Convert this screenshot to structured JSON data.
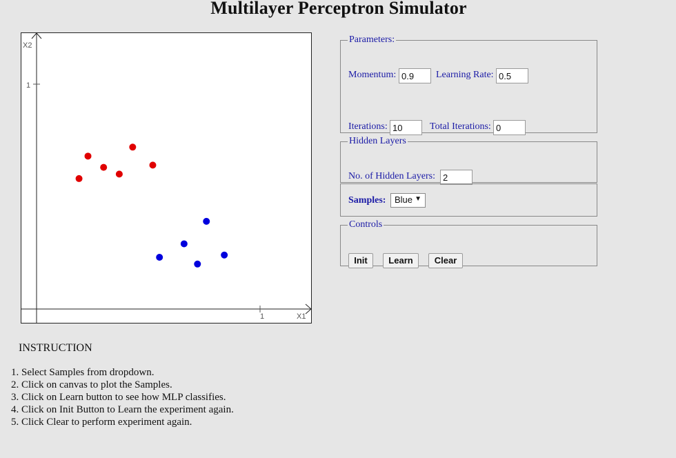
{
  "title": "Multilayer Perceptron Simulator",
  "canvas": {
    "x1_label": "X1",
    "x2_label": "X2",
    "x_tick_label": "1",
    "y_tick_label": "1",
    "red_points": [
      [
        0.23,
        0.68
      ],
      [
        0.3,
        0.63
      ],
      [
        0.19,
        0.58
      ],
      [
        0.37,
        0.6
      ],
      [
        0.43,
        0.72
      ],
      [
        0.52,
        0.64
      ]
    ],
    "blue_points": [
      [
        0.76,
        0.39
      ],
      [
        0.84,
        0.24
      ],
      [
        0.66,
        0.29
      ],
      [
        0.55,
        0.23
      ],
      [
        0.72,
        0.2
      ]
    ],
    "colors": {
      "red": "#e00000",
      "blue": "#0000dd"
    }
  },
  "parameters": {
    "legend": "Parameters:",
    "momentum_label": "Momentum:",
    "momentum_value": "0.9",
    "learning_rate_label": "Learning Rate:",
    "learning_rate_value": "0.5",
    "iterations_label": "Iterations:",
    "iterations_value": "10",
    "total_iterations_label": "Total Iterations:",
    "total_iterations_value": "0"
  },
  "hidden_layers": {
    "legend": "Hidden Layers",
    "count_label": "No. of Hidden Layers:",
    "count_value": "2"
  },
  "samples": {
    "label": "Samples:",
    "selected": "Blue"
  },
  "controls": {
    "legend": "Controls",
    "init_label": "Init",
    "learn_label": "Learn",
    "clear_label": "Clear"
  },
  "instructions": {
    "heading": "INSTRUCTION",
    "steps": [
      "Select Samples from dropdown.",
      "Click on canvas to plot the Samples.",
      "Click on Learn button to see how MLP classifies.",
      "Click on Init Button to Learn the experiment again.",
      "Click Clear to perform experiment again."
    ]
  }
}
